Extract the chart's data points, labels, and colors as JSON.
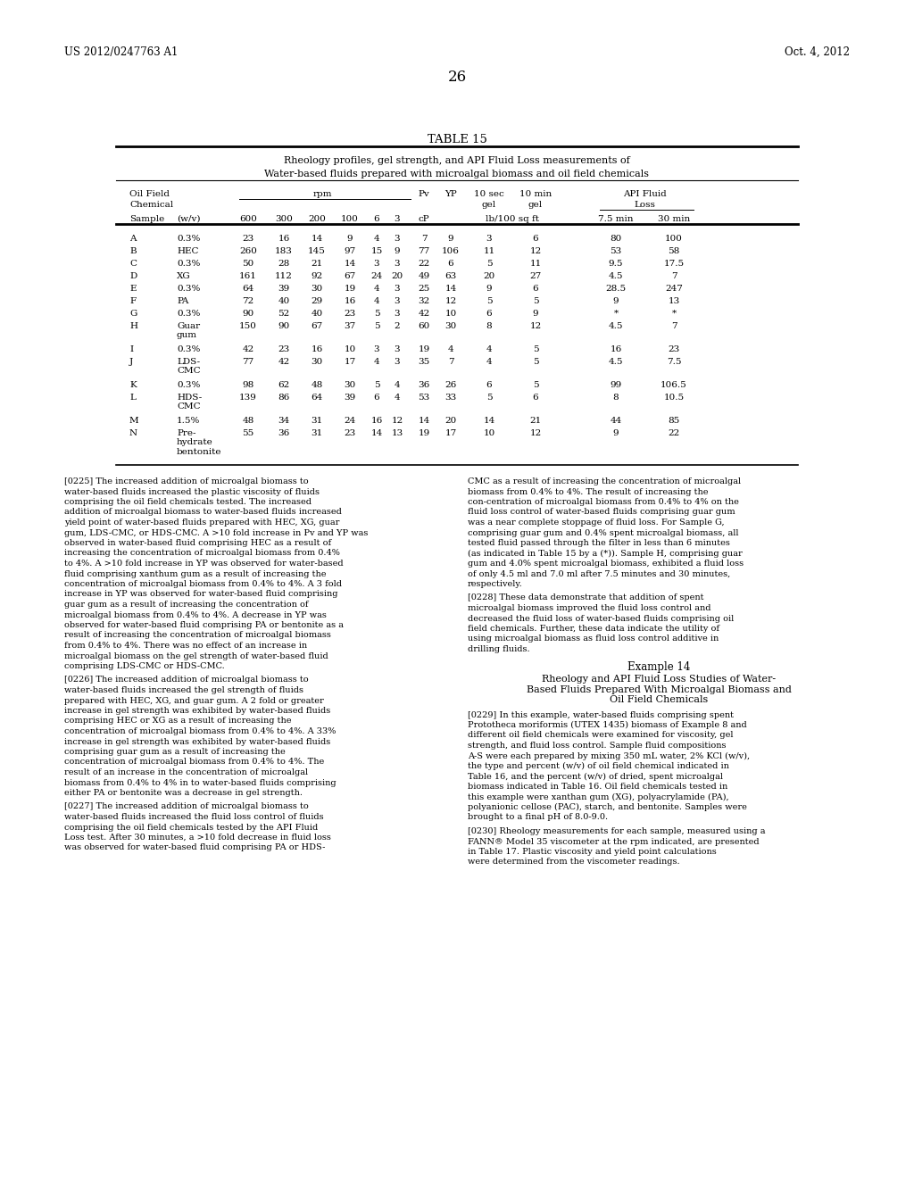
{
  "header_left": "US 2012/0247763 A1",
  "header_right": "Oct. 4, 2012",
  "page_number": "26",
  "table_title": "TABLE 15",
  "table_subtitle1": "Rheology profiles, gel strength, and API Fluid Loss measurements of",
  "table_subtitle2": "Water-based fluids prepared with microalgal biomass and oil field chemicals",
  "rows": [
    {
      "sample": "A",
      "chem": "0.3%",
      "v600": "23",
      "v300": "16",
      "v200": "14",
      "v100": "9",
      "v6": "4",
      "v3": "3",
      "pv": "7",
      "yp": "9",
      "gel10s": "3",
      "gel10m": "6",
      "loss75": "80",
      "loss30": "100"
    },
    {
      "sample": "B",
      "chem": "HEC",
      "v600": "260",
      "v300": "183",
      "v200": "145",
      "v100": "97",
      "v6": "15",
      "v3": "9",
      "pv": "77",
      "yp": "106",
      "gel10s": "11",
      "gel10m": "12",
      "loss75": "53",
      "loss30": "58"
    },
    {
      "sample": "C",
      "chem": "0.3%",
      "v600": "50",
      "v300": "28",
      "v200": "21",
      "v100": "14",
      "v6": "3",
      "v3": "3",
      "pv": "22",
      "yp": "6",
      "gel10s": "5",
      "gel10m": "11",
      "loss75": "9.5",
      "loss30": "17.5"
    },
    {
      "sample": "D",
      "chem": "XG",
      "v600": "161",
      "v300": "112",
      "v200": "92",
      "v100": "67",
      "v6": "24",
      "v3": "20",
      "pv": "49",
      "yp": "63",
      "gel10s": "20",
      "gel10m": "27",
      "loss75": "4.5",
      "loss30": "7"
    },
    {
      "sample": "E",
      "chem": "0.3%",
      "v600": "64",
      "v300": "39",
      "v200": "30",
      "v100": "19",
      "v6": "4",
      "v3": "3",
      "pv": "25",
      "yp": "14",
      "gel10s": "9",
      "gel10m": "6",
      "loss75": "28.5",
      "loss30": "247"
    },
    {
      "sample": "F",
      "chem": "PA",
      "v600": "72",
      "v300": "40",
      "v200": "29",
      "v100": "16",
      "v6": "4",
      "v3": "3",
      "pv": "32",
      "yp": "12",
      "gel10s": "5",
      "gel10m": "5",
      "loss75": "9",
      "loss30": "13"
    },
    {
      "sample": "G",
      "chem": "0.3%",
      "v600": "90",
      "v300": "52",
      "v200": "40",
      "v100": "23",
      "v6": "5",
      "v3": "3",
      "pv": "42",
      "yp": "10",
      "gel10s": "6",
      "gel10m": "9",
      "loss75": "*",
      "loss30": "*"
    },
    {
      "sample": "H",
      "chem": "Guar\ngum",
      "v600": "150",
      "v300": "90",
      "v200": "67",
      "v100": "37",
      "v6": "5",
      "v3": "2",
      "pv": "60",
      "yp": "30",
      "gel10s": "8",
      "gel10m": "12",
      "loss75": "4.5",
      "loss30": "7"
    },
    {
      "sample": "I",
      "chem": "0.3%",
      "v600": "42",
      "v300": "23",
      "v200": "16",
      "v100": "10",
      "v6": "3",
      "v3": "3",
      "pv": "19",
      "yp": "4",
      "gel10s": "4",
      "gel10m": "5",
      "loss75": "16",
      "loss30": "23"
    },
    {
      "sample": "J",
      "chem": "LDS-\nCMC",
      "v600": "77",
      "v300": "42",
      "v200": "30",
      "v100": "17",
      "v6": "4",
      "v3": "3",
      "pv": "35",
      "yp": "7",
      "gel10s": "4",
      "gel10m": "5",
      "loss75": "4.5",
      "loss30": "7.5"
    },
    {
      "sample": "K",
      "chem": "0.3%",
      "v600": "98",
      "v300": "62",
      "v200": "48",
      "v100": "30",
      "v6": "5",
      "v3": "4",
      "pv": "36",
      "yp": "26",
      "gel10s": "6",
      "gel10m": "5",
      "loss75": "99",
      "loss30": "106.5"
    },
    {
      "sample": "L",
      "chem": "HDS-\nCMC",
      "v600": "139",
      "v300": "86",
      "v200": "64",
      "v100": "39",
      "v6": "6",
      "v3": "4",
      "pv": "53",
      "yp": "33",
      "gel10s": "5",
      "gel10m": "6",
      "loss75": "8",
      "loss30": "10.5"
    },
    {
      "sample": "M",
      "chem": "1.5%",
      "v600": "48",
      "v300": "34",
      "v200": "31",
      "v100": "24",
      "v6": "16",
      "v3": "12",
      "pv": "14",
      "yp": "20",
      "gel10s": "14",
      "gel10m": "21",
      "loss75": "44",
      "loss30": "85"
    },
    {
      "sample": "N",
      "chem": "Pre-\nhydrate\nbentonite",
      "v600": "55",
      "v300": "36",
      "v200": "31",
      "v100": "23",
      "v6": "14",
      "v3": "13",
      "pv": "19",
      "yp": "17",
      "gel10s": "10",
      "gel10m": "12",
      "loss75": "9",
      "loss30": "22"
    }
  ],
  "para_0225": "[0225]  The increased addition of microalgal biomass to water-based fluids increased the plastic viscosity of fluids comprising the oil field chemicals tested. The increased addition of microalgal biomass to water-based fluids increased yield point of water-based fluids prepared with HEC, XG, guar gum, LDS-CMC, or HDS-CMC. A >10 fold increase in Pv and YP was observed in water-based fluid comprising HEC as a result of increasing the concentration of microalgal biomass from 0.4% to 4%. A >10 fold increase in YP was observed for water-based fluid comprising xanthum gum as a result of increasing the concentration of microalgal biomass from 0.4% to 4%. A 3 fold increase in YP was observed for water-based fluid comprising guar gum as a result of increasing the concentration of microalgal biomass from 0.4% to 4%. A decrease in YP was observed for water-based fluid comprising PA or bentonite as a result of increasing the concentration of microalgal biomass from 0.4% to 4%. There was no effect of an increase in microalgal biomass on the gel strength of water-based fluid comprising LDS-CMC or HDS-CMC.",
  "para_0226": "[0226]  The increased addition of microalgal biomass to water-based fluids increased the gel strength of fluids prepared with HEC, XG, and guar gum. A 2 fold or greater increase in gel strength was exhibited by water-based fluids comprising HEC or XG as a result of increasing the concentration of microalgal biomass from 0.4% to 4%. A 33% increase in gel strength was exhibited by water-based fluids comprising guar gum as a result of increasing the concentration of microalgal biomass from 0.4% to 4%. The result of an increase in the concentration of microalgal biomass from 0.4% to 4% in to water-based fluids comprising either PA or bentonite was a decrease in gel strength.",
  "para_0227": "[0227]  The increased addition of microalgal biomass to water-based fluids increased the fluid loss control of fluids comprising the oil field chemicals tested by the API Fluid Loss test. After 30 minutes, a >10 fold decrease in fluid loss was observed for water-based fluid comprising PA or HDS-CMC as a result of increasing the concentration of microalgal biomass from 0.4% to 4%. The result of increasing the concentration of microalgal biomass from 0.4% to 4% on the fluid loss control of water-based fluids comprising guar gum was a near complete stoppage of fluid loss. For Sample G, comprising guar gum and 0.4% spent microalgal biomass, all tested fluid passed through the filter in less than 6 minutes (as indicated in Table 15 by a (*)). Sample H, comprising guar gum and 4.0% spent microalgal biomass, exhibited a fluid loss of only 4.5 ml and 7.0 ml after 7.5 minutes and 30 minutes, respectively.",
  "para_0228": "[0228]  These data demonstrate that addition of spent microalgal biomass improved the fluid loss control and decreased the fluid loss of water-based fluids comprising oil field chemicals. Further, these data indicate the utility of using microalgal biomass as fluid loss control additive in drilling fluids.",
  "example14_title": "Example 14",
  "example14_sub1": "Rheology and API Fluid Loss Studies of Water-",
  "example14_sub2": "Based Fluids Prepared With Microalgal Biomass and",
  "example14_sub3": "Oil Field Chemicals",
  "para_0229": "[0229]  In this example, water-based fluids comprising spent Prototheca moriformis (UTEX 1435) biomass of Example 8 and different oil field chemicals were examined for viscosity, gel strength, and fluid loss control. Sample fluid compositions A-S were each prepared by mixing 350 mL water, 2% KCl (w/v), the type and percent (w/v) of oil field chemical indicated in Table 16, and the percent (w/v) of dried, spent microalgal biomass indicated in Table 16. Oil field chemicals tested in this example were xanthan gum (XG), polyacrylamide (PA), polyanionic cellose (PAC), starch, and bentonite. Samples were brought to a final pH of 8.0-9.0.",
  "para_0230": "[0230]  Rheology measurements for each sample, measured using a FANN® Model 35 viscometer at the rpm indicated, are presented in Table 17. Plastic viscosity and yield point calculations were determined from the viscometer readings."
}
